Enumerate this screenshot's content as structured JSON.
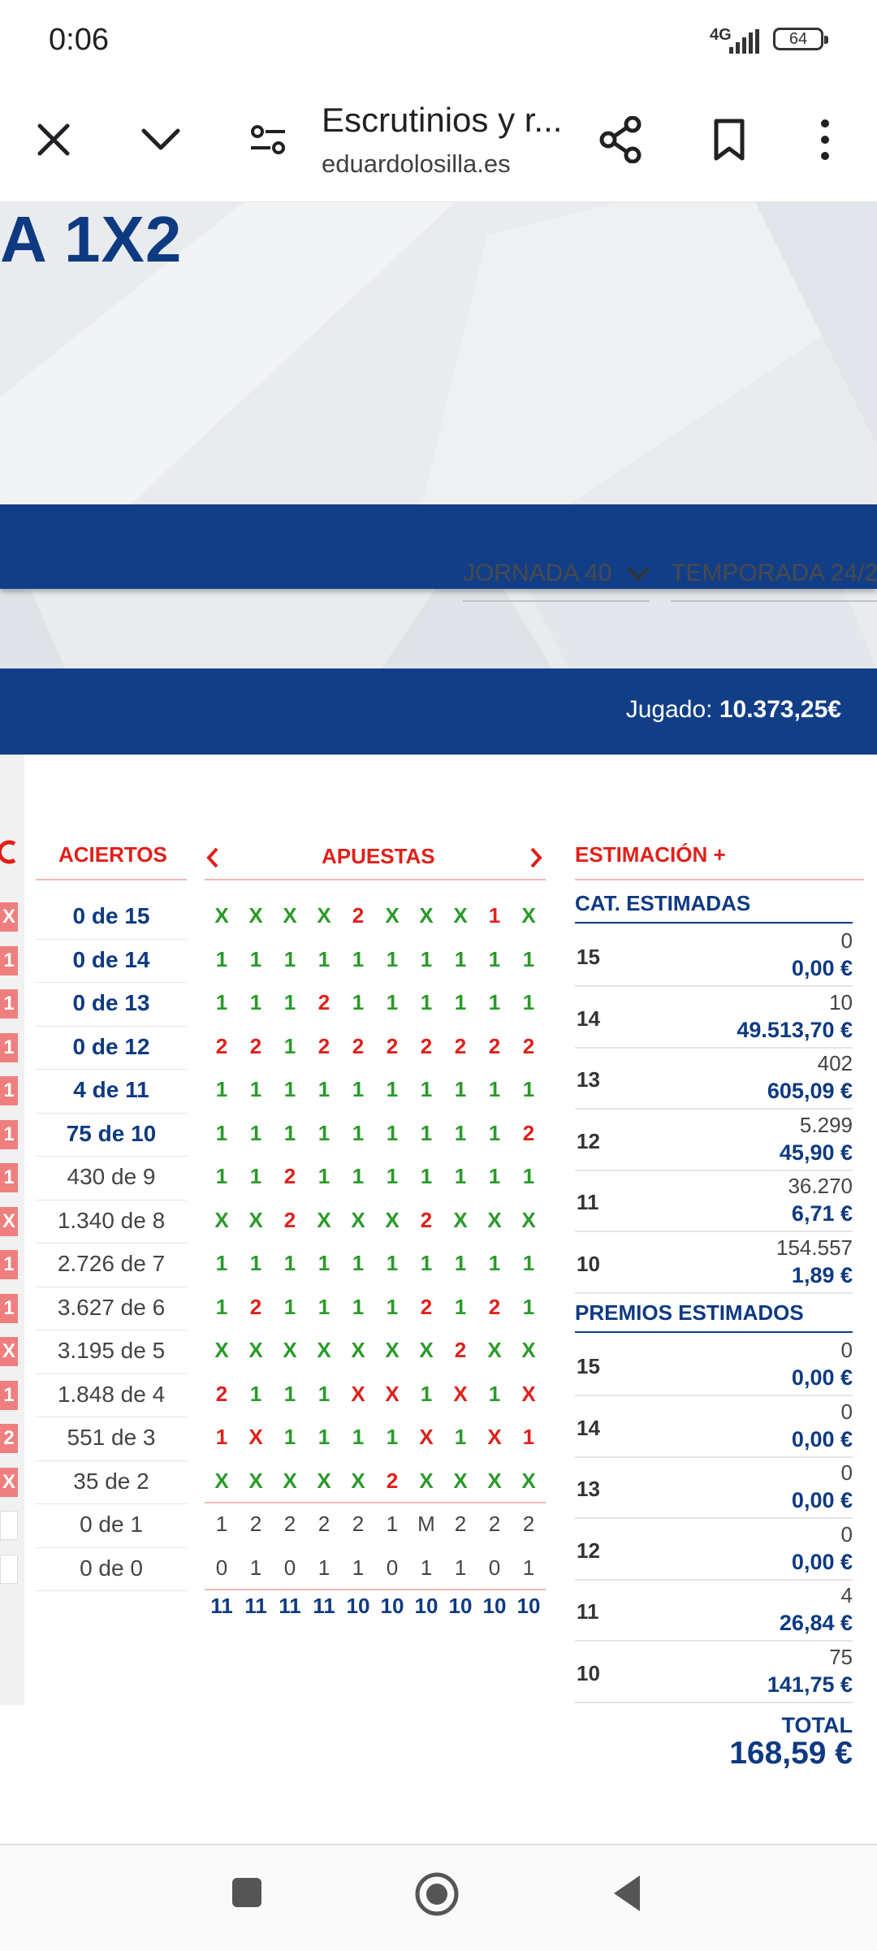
{
  "status": {
    "time": "0:06",
    "network": "4G",
    "battery": "64"
  },
  "toolbar": {
    "title": "Escrutinios y r...",
    "url": "eduardolosilla.es"
  },
  "hero": {
    "title": "A 1X2",
    "jornada_label": "JORNADA 40",
    "temporada_label": "TEMPORADA 24/2",
    "jugado_label": "Jugado:",
    "jugado_value": "10.373,25€"
  },
  "left_marks": [
    "X",
    "1",
    "1",
    "1",
    "1",
    "1",
    "1",
    "X",
    "1",
    "1",
    "X",
    "1",
    "2",
    "X",
    "",
    ""
  ],
  "headers": {
    "aciertos": "ACIERTOS",
    "apuestas": "APUESTAS",
    "estimacion": "ESTIMACIÓN +"
  },
  "aciertos": [
    {
      "text": "0 de 15",
      "strong": true
    },
    {
      "text": "0 de 14",
      "strong": true
    },
    {
      "text": "0 de 13",
      "strong": true
    },
    {
      "text": "0 de 12",
      "strong": true
    },
    {
      "text": "4 de 11",
      "strong": true
    },
    {
      "text": "75 de 10",
      "strong": true
    },
    {
      "text": "430 de 9",
      "strong": false
    },
    {
      "text": "1.340 de 8",
      "strong": false
    },
    {
      "text": "2.726 de 7",
      "strong": false
    },
    {
      "text": "3.627 de 6",
      "strong": false
    },
    {
      "text": "3.195 de 5",
      "strong": false
    },
    {
      "text": "1.848 de 4",
      "strong": false
    },
    {
      "text": "551 de 3",
      "strong": false
    },
    {
      "text": "35 de 2",
      "strong": false
    },
    {
      "text": "0 de 1",
      "strong": false
    },
    {
      "text": "0 de 0",
      "strong": false
    }
  ],
  "apuestas": [
    [
      "X",
      "X",
      "X",
      "X",
      "2",
      "X",
      "X",
      "X",
      "1",
      "X"
    ],
    [
      "1",
      "1",
      "1",
      "1",
      "1",
      "1",
      "1",
      "1",
      "1",
      "1"
    ],
    [
      "1",
      "1",
      "1",
      "2",
      "1",
      "1",
      "1",
      "1",
      "1",
      "1"
    ],
    [
      "2",
      "2",
      "1",
      "2",
      "2",
      "2",
      "2",
      "2",
      "2",
      "2"
    ],
    [
      "1",
      "1",
      "1",
      "1",
      "1",
      "1",
      "1",
      "1",
      "1",
      "1"
    ],
    [
      "1",
      "1",
      "1",
      "1",
      "1",
      "1",
      "1",
      "1",
      "1",
      "2"
    ],
    [
      "1",
      "1",
      "2",
      "1",
      "1",
      "1",
      "1",
      "1",
      "1",
      "1"
    ],
    [
      "X",
      "X",
      "2",
      "X",
      "X",
      "X",
      "2",
      "X",
      "X",
      "X"
    ],
    [
      "1",
      "1",
      "1",
      "1",
      "1",
      "1",
      "1",
      "1",
      "1",
      "1"
    ],
    [
      "1",
      "2",
      "1",
      "1",
      "1",
      "1",
      "2",
      "1",
      "2",
      "1"
    ],
    [
      "X",
      "X",
      "X",
      "X",
      "X",
      "X",
      "X",
      "2",
      "X",
      "X"
    ],
    [
      "2",
      "1",
      "1",
      "1",
      "X",
      "X",
      "1",
      "X",
      "1",
      "X"
    ],
    [
      "1",
      "X",
      "1",
      "1",
      "1",
      "1",
      "X",
      "1",
      "X",
      "1"
    ],
    [
      "X",
      "X",
      "X",
      "X",
      "X",
      "2",
      "X",
      "X",
      "X",
      "X"
    ]
  ],
  "apuestas_colors": [
    [
      "g",
      "g",
      "g",
      "g",
      "r",
      "g",
      "g",
      "g",
      "r",
      "g"
    ],
    [
      "g",
      "g",
      "g",
      "g",
      "g",
      "g",
      "g",
      "g",
      "g",
      "g"
    ],
    [
      "g",
      "g",
      "g",
      "r",
      "g",
      "g",
      "g",
      "g",
      "g",
      "g"
    ],
    [
      "r",
      "r",
      "g",
      "r",
      "r",
      "r",
      "r",
      "r",
      "r",
      "r"
    ],
    [
      "g",
      "g",
      "g",
      "g",
      "g",
      "g",
      "g",
      "g",
      "g",
      "g"
    ],
    [
      "g",
      "g",
      "g",
      "g",
      "g",
      "g",
      "g",
      "g",
      "g",
      "r"
    ],
    [
      "g",
      "g",
      "r",
      "g",
      "g",
      "g",
      "g",
      "g",
      "g",
      "g"
    ],
    [
      "g",
      "g",
      "r",
      "g",
      "g",
      "g",
      "r",
      "g",
      "g",
      "g"
    ],
    [
      "g",
      "g",
      "g",
      "g",
      "g",
      "g",
      "g",
      "g",
      "g",
      "g"
    ],
    [
      "g",
      "r",
      "g",
      "g",
      "g",
      "g",
      "r",
      "g",
      "r",
      "g"
    ],
    [
      "g",
      "g",
      "g",
      "g",
      "g",
      "g",
      "g",
      "r",
      "g",
      "g"
    ],
    [
      "r",
      "g",
      "g",
      "g",
      "r",
      "r",
      "g",
      "r",
      "g",
      "r"
    ],
    [
      "r",
      "r",
      "g",
      "g",
      "g",
      "g",
      "r",
      "g",
      "r",
      "r"
    ],
    [
      "g",
      "g",
      "g",
      "g",
      "g",
      "r",
      "g",
      "g",
      "g",
      "g"
    ]
  ],
  "apuestas_extra": [
    [
      "1",
      "2",
      "2",
      "2",
      "2",
      "1",
      "M",
      "2",
      "2",
      "2"
    ],
    [
      "0",
      "1",
      "0",
      "1",
      "1",
      "0",
      "1",
      "1",
      "0",
      "1"
    ]
  ],
  "apuestas_totals": [
    "11",
    "11",
    "11",
    "11",
    "10",
    "10",
    "10",
    "10",
    "10",
    "10"
  ],
  "estimacion": {
    "cat_title": "CAT. ESTIMADAS",
    "cat_rows": [
      {
        "cat": "15",
        "count": "0",
        "value": "0,00 €"
      },
      {
        "cat": "14",
        "count": "10",
        "value": "49.513,70 €"
      },
      {
        "cat": "13",
        "count": "402",
        "value": "605,09 €"
      },
      {
        "cat": "12",
        "count": "5.299",
        "value": "45,90 €"
      },
      {
        "cat": "11",
        "count": "36.270",
        "value": "6,71 €"
      },
      {
        "cat": "10",
        "count": "154.557",
        "value": "1,89 €"
      }
    ],
    "prem_title": "PREMIOS ESTIMADOS",
    "prem_rows": [
      {
        "cat": "15",
        "count": "0",
        "value": "0,00 €"
      },
      {
        "cat": "14",
        "count": "0",
        "value": "0,00 €"
      },
      {
        "cat": "13",
        "count": "0",
        "value": "0,00 €"
      },
      {
        "cat": "12",
        "count": "0",
        "value": "0,00 €"
      },
      {
        "cat": "11",
        "count": "4",
        "value": "26,84 €"
      },
      {
        "cat": "10",
        "count": "75",
        "value": "141,75 €"
      }
    ],
    "total_label": "TOTAL",
    "total_value": "168,59 €"
  },
  "colors": {
    "brand_blue": "#123e87",
    "accent_red": "#e0201a",
    "win_green": "#2a9a2a"
  }
}
